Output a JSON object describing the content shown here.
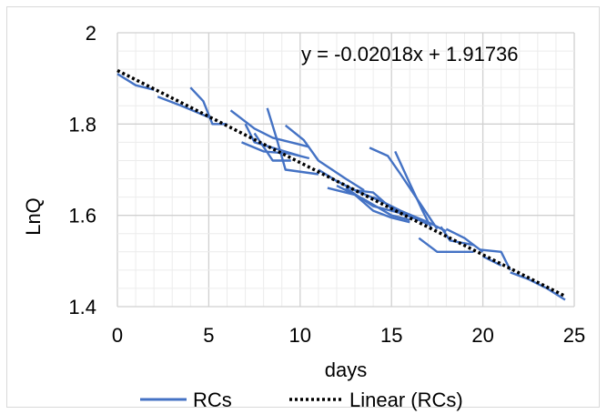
{
  "chart_data": {
    "type": "line",
    "xlabel": "days",
    "ylabel": "LnQ",
    "xlim": [
      0,
      25
    ],
    "ylim": [
      1.4,
      2
    ],
    "xticks": [
      "0",
      "5",
      "10",
      "15",
      "20",
      "25"
    ],
    "yticks": [
      "1.4",
      "1.6",
      "1.8",
      "2"
    ],
    "grid": "major and minor",
    "legend_position": "bottom",
    "annotation": "y = -0.02018x + 1.91736",
    "trendline": {
      "name": "Linear (RCs)",
      "slope": -0.02018,
      "intercept": 1.91736,
      "x_range": [
        0,
        24.5
      ],
      "style": "dotted",
      "color": "#000000"
    },
    "series_color": "#4472c4",
    "series": [
      {
        "name": "RCs",
        "points": [
          [
            0,
            1.91
          ],
          [
            1,
            1.885
          ],
          [
            2,
            1.875
          ]
        ]
      },
      {
        "points": [
          [
            2.2,
            1.86
          ],
          [
            3.5,
            1.84
          ],
          [
            5,
            1.815
          ]
        ]
      },
      {
        "points": [
          [
            4,
            1.88
          ],
          [
            4.7,
            1.85
          ],
          [
            5.2,
            1.8
          ],
          [
            6,
            1.8
          ]
        ]
      },
      {
        "points": [
          [
            6.2,
            1.83
          ],
          [
            7.5,
            1.79
          ],
          [
            8.5,
            1.77
          ],
          [
            10.5,
            1.75
          ]
        ]
      },
      {
        "points": [
          [
            7,
            1.8
          ],
          [
            7.5,
            1.76
          ],
          [
            10,
            1.73
          ]
        ]
      },
      {
        "points": [
          [
            6.8,
            1.76
          ],
          [
            8,
            1.74
          ],
          [
            9.5,
            1.735
          ],
          [
            10.5,
            1.725
          ]
        ]
      },
      {
        "points": [
          [
            7.5,
            1.78
          ],
          [
            8.5,
            1.72
          ],
          [
            9.5,
            1.72
          ]
        ]
      },
      {
        "points": [
          [
            8.2,
            1.835
          ],
          [
            8.7,
            1.77
          ],
          [
            9.2,
            1.7
          ],
          [
            11,
            1.69
          ]
        ]
      },
      {
        "points": [
          [
            9.2,
            1.797
          ],
          [
            10.2,
            1.765
          ],
          [
            11,
            1.72
          ],
          [
            12.5,
            1.68
          ],
          [
            13.5,
            1.655
          ]
        ]
      },
      {
        "points": [
          [
            11,
            1.7
          ],
          [
            12,
            1.675
          ],
          [
            13,
            1.655
          ],
          [
            14.5,
            1.63
          ]
        ]
      },
      {
        "points": [
          [
            11.5,
            1.66
          ],
          [
            13,
            1.645
          ],
          [
            14,
            1.61
          ],
          [
            15,
            1.595
          ],
          [
            16,
            1.585
          ]
        ]
      },
      {
        "points": [
          [
            12,
            1.665
          ],
          [
            13.5,
            1.635
          ],
          [
            15,
            1.6
          ],
          [
            16,
            1.59
          ]
        ]
      },
      {
        "points": [
          [
            12.5,
            1.66
          ],
          [
            14,
            1.62
          ],
          [
            15.5,
            1.605
          ],
          [
            16.5,
            1.59
          ]
        ]
      },
      {
        "points": [
          [
            13,
            1.655
          ],
          [
            14,
            1.65
          ],
          [
            15,
            1.615
          ],
          [
            16,
            1.6
          ],
          [
            17,
            1.58
          ]
        ]
      },
      {
        "points": [
          [
            13.8,
            1.748
          ],
          [
            14.8,
            1.73
          ],
          [
            15.5,
            1.69
          ],
          [
            16.5,
            1.63
          ],
          [
            17.5,
            1.57
          ]
        ]
      },
      {
        "points": [
          [
            15.2,
            1.74
          ],
          [
            16,
            1.67
          ],
          [
            16.7,
            1.61
          ],
          [
            17.2,
            1.57
          ]
        ]
      },
      {
        "points": [
          [
            14,
            1.64
          ],
          [
            15.5,
            1.61
          ],
          [
            17,
            1.585
          ],
          [
            18,
            1.565
          ]
        ]
      },
      {
        "points": [
          [
            16.5,
            1.55
          ],
          [
            17.5,
            1.52
          ],
          [
            19.5,
            1.52
          ]
        ]
      },
      {
        "points": [
          [
            17.7,
            1.575
          ],
          [
            18.2,
            1.545
          ],
          [
            19.5,
            1.535
          ]
        ]
      },
      {
        "points": [
          [
            18,
            1.57
          ],
          [
            19,
            1.55
          ],
          [
            20,
            1.52
          ]
        ]
      },
      {
        "points": [
          [
            19.8,
            1.525
          ],
          [
            21,
            1.52
          ],
          [
            21.5,
            1.48
          ]
        ]
      },
      {
        "points": [
          [
            20,
            1.51
          ],
          [
            21,
            1.49
          ]
        ]
      },
      {
        "points": [
          [
            21.5,
            1.475
          ],
          [
            22.5,
            1.46
          ],
          [
            23.5,
            1.44
          ],
          [
            24.5,
            1.415
          ]
        ]
      }
    ]
  }
}
